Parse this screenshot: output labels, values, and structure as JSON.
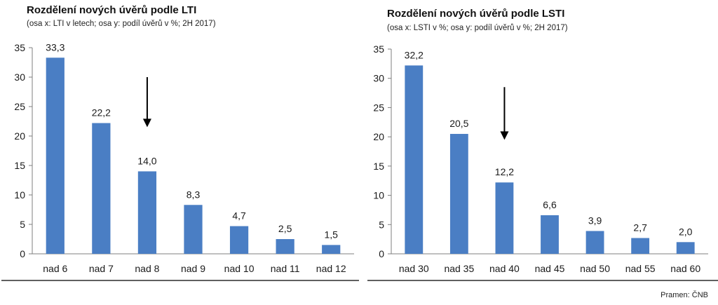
{
  "colors": {
    "bar": "#4a7ec4",
    "axis": "#7f7f7f",
    "text": "#1a1a1a",
    "arrow": "#000000"
  },
  "source": "Pramen: ČNB",
  "chart_data": [
    {
      "type": "bar",
      "title": "Rozdělení nových úvěrů podle LTI",
      "subtitle": "(osa x: LTI v letech; osa y: podíl úvěrů v %; 2H 2017)",
      "categories": [
        "nad 6",
        "nad 7",
        "nad 8",
        "nad 9",
        "nad 10",
        "nad 11",
        "nad 12"
      ],
      "values": [
        33.3,
        22.2,
        14.0,
        8.3,
        4.7,
        2.5,
        1.5
      ],
      "value_labels": [
        "33,3",
        "22,2",
        "14,0",
        "8,3",
        "4,7",
        "2,5",
        "1,5"
      ],
      "ylim": [
        0,
        35
      ],
      "yticks": [
        0,
        5,
        10,
        15,
        20,
        25,
        30,
        35
      ],
      "grid": false,
      "legend": "none",
      "arrow": {
        "category_index": 2,
        "from_value": 30,
        "to_value": 21.5
      }
    },
    {
      "type": "bar",
      "title": "Rozdělení nových úvěrů podle LSTI",
      "subtitle": "(osa x: LSTI v %; osa y: podíl úvěrů v %; 2H 2017)",
      "categories": [
        "nad 30",
        "nad 35",
        "nad 40",
        "nad 45",
        "nad 50",
        "nad 55",
        "nad 60"
      ],
      "values": [
        32.2,
        20.5,
        12.2,
        6.6,
        3.9,
        2.7,
        2.0
      ],
      "value_labels": [
        "32,2",
        "20,5",
        "12,2",
        "6,6",
        "3,9",
        "2,7",
        "2,0"
      ],
      "ylim": [
        0,
        35
      ],
      "yticks": [
        0,
        5,
        10,
        15,
        20,
        25,
        30,
        35
      ],
      "grid": false,
      "legend": "none",
      "arrow": {
        "category_index": 2,
        "from_value": 28.5,
        "to_value": 19.5
      }
    }
  ]
}
